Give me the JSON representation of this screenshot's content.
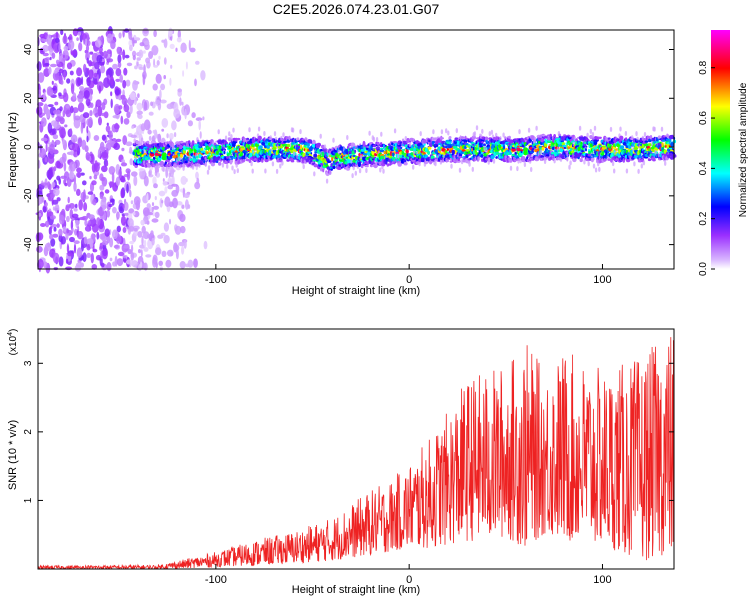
{
  "title": "C2E5.2026.074.23.01.G07",
  "chart_data": [
    {
      "type": "heatmap",
      "title": "C2E5.2026.074.23.01.G07",
      "xlabel": "Height of straight line (km)",
      "ylabel": "Frequency (Hz)",
      "xlim": [
        -192,
        137
      ],
      "ylim": [
        -50,
        48
      ],
      "xticks": [
        -100,
        0,
        100
      ],
      "yticks": [
        -40,
        -20,
        0,
        20,
        40
      ],
      "xtick_labels": [
        "-100",
        "0",
        "100"
      ],
      "ytick_labels": [
        "-40",
        "-20",
        "0",
        "20",
        "40"
      ],
      "colorbar": {
        "label": "Normalized spectral amplitude",
        "range": [
          0,
          0.95
        ],
        "ticks": [
          0.0,
          0.2,
          0.4,
          0.6,
          0.8
        ],
        "tick_labels": [
          "0.0",
          "0.2",
          "0.4",
          "0.6",
          "0.8"
        ],
        "colors": [
          "#ffffff",
          "#9b30ff",
          "#0000ff",
          "#00ffff",
          "#00ff00",
          "#ffff00",
          "#ff0000",
          "#ff00ff"
        ]
      },
      "ridge": {
        "x": [
          -142,
          -120,
          -100,
          -80,
          -60,
          -50,
          -42,
          -35,
          -20,
          0,
          20,
          40,
          60,
          70,
          80,
          100,
          120,
          137
        ],
        "freq": [
          -3,
          -3,
          -2,
          -1,
          -1,
          -2,
          -6,
          -4,
          -3,
          -2,
          -1,
          -1,
          -1,
          0,
          0,
          -1,
          -1,
          0
        ],
        "peak_amplitude": 0.95
      },
      "noise_region": {
        "x_from": -192,
        "x_to": -105
      }
    },
    {
      "type": "line",
      "xlabel": "Height of straight line (km)",
      "ylabel": "SNR (10 * v/v)",
      "scale_label": "(x10",
      "scale_exponent": "4",
      "scale_close": ")",
      "xlim": [
        -192,
        137
      ],
      "ylim": [
        0,
        3.5
      ],
      "xticks": [
        -100,
        0,
        100
      ],
      "yticks": [
        1,
        2,
        3
      ],
      "xtick_labels": [
        "-100",
        "0",
        "100"
      ],
      "ytick_labels": [
        "1",
        "2",
        "3"
      ],
      "color": "#ee2222",
      "envelope": {
        "x": [
          -192,
          -130,
          -115,
          -100,
          -80,
          -60,
          -40,
          -20,
          -10,
          0,
          10,
          20,
          30,
          50,
          60,
          70,
          80,
          100,
          120,
          130,
          137
        ],
        "max": [
          0.05,
          0.06,
          0.15,
          0.25,
          0.42,
          0.55,
          0.75,
          1.15,
          1.3,
          1.55,
          1.9,
          2.3,
          2.8,
          3.0,
          3.35,
          2.9,
          3.2,
          2.9,
          3.1,
          3.35,
          3.5
        ],
        "min": [
          0.0,
          0.0,
          0.01,
          0.03,
          0.05,
          0.08,
          0.12,
          0.2,
          0.25,
          0.3,
          0.3,
          0.35,
          0.4,
          0.45,
          0.3,
          0.5,
          0.4,
          0.35,
          0.1,
          0.2,
          0.15
        ]
      }
    }
  ]
}
